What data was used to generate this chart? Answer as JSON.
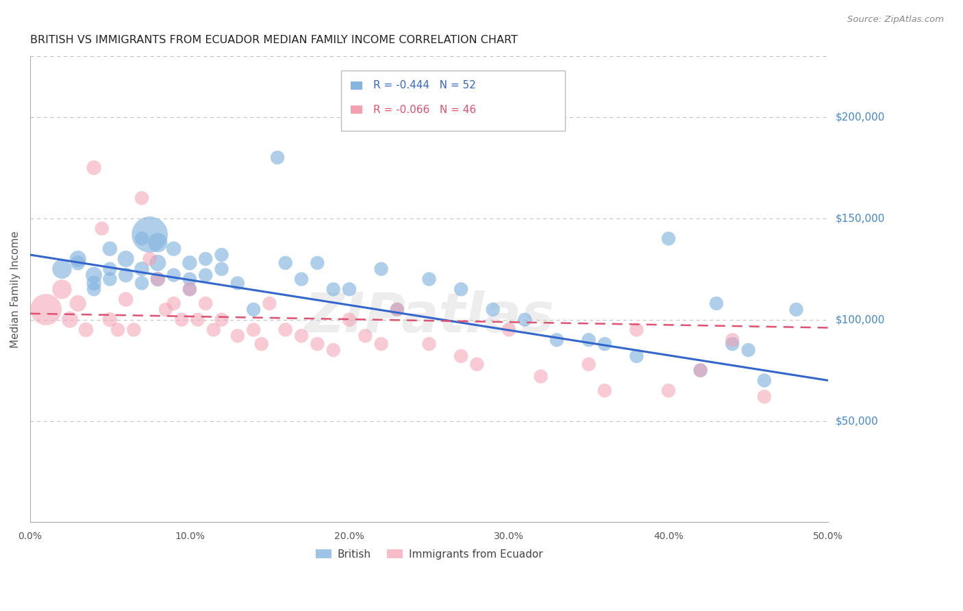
{
  "title": "BRITISH VS IMMIGRANTS FROM ECUADOR MEDIAN FAMILY INCOME CORRELATION CHART",
  "source": "Source: ZipAtlas.com",
  "ylabel": "Median Family Income",
  "watermark": "ZIPatlas",
  "legend_blue_r": "R = -0.444",
  "legend_blue_n": "N = 52",
  "legend_pink_r": "R = -0.066",
  "legend_pink_n": "N = 46",
  "ytick_labels": [
    "$50,000",
    "$100,000",
    "$150,000",
    "$200,000"
  ],
  "ytick_values": [
    50000,
    100000,
    150000,
    200000
  ],
  "ylim": [
    0,
    230000
  ],
  "xlim": [
    0.0,
    0.5
  ],
  "blue_color": "#85B5E0",
  "pink_color": "#F4A0B0",
  "line_blue": "#3366CC",
  "line_pink": "#E05070",
  "grid_color": "#BBBBBB",
  "title_color": "#222222",
  "axis_label_color": "#555555",
  "right_label_color": "#4488CC",
  "blue_x": [
    0.02,
    0.03,
    0.03,
    0.04,
    0.04,
    0.04,
    0.05,
    0.05,
    0.05,
    0.06,
    0.06,
    0.07,
    0.07,
    0.07,
    0.075,
    0.08,
    0.08,
    0.08,
    0.09,
    0.09,
    0.1,
    0.1,
    0.1,
    0.11,
    0.11,
    0.12,
    0.12,
    0.13,
    0.14,
    0.155,
    0.16,
    0.17,
    0.18,
    0.19,
    0.2,
    0.22,
    0.23,
    0.25,
    0.27,
    0.29,
    0.31,
    0.33,
    0.35,
    0.36,
    0.38,
    0.4,
    0.42,
    0.43,
    0.44,
    0.45,
    0.46,
    0.48
  ],
  "blue_y": [
    125000,
    130000,
    128000,
    122000,
    118000,
    115000,
    135000,
    125000,
    120000,
    130000,
    122000,
    140000,
    125000,
    118000,
    142000,
    138000,
    128000,
    120000,
    135000,
    122000,
    128000,
    120000,
    115000,
    130000,
    122000,
    132000,
    125000,
    118000,
    105000,
    180000,
    128000,
    120000,
    128000,
    115000,
    115000,
    125000,
    105000,
    120000,
    115000,
    105000,
    100000,
    90000,
    90000,
    88000,
    82000,
    140000,
    75000,
    108000,
    88000,
    85000,
    70000,
    105000
  ],
  "blue_size": [
    35,
    25,
    20,
    25,
    20,
    18,
    20,
    18,
    18,
    25,
    20,
    18,
    20,
    18,
    120,
    35,
    25,
    20,
    20,
    18,
    20,
    18,
    18,
    18,
    18,
    18,
    18,
    18,
    18,
    18,
    18,
    18,
    18,
    18,
    18,
    18,
    18,
    18,
    18,
    18,
    18,
    18,
    18,
    18,
    18,
    18,
    18,
    18,
    18,
    18,
    18,
    18
  ],
  "pink_x": [
    0.01,
    0.02,
    0.025,
    0.03,
    0.035,
    0.04,
    0.045,
    0.05,
    0.055,
    0.06,
    0.065,
    0.07,
    0.075,
    0.08,
    0.085,
    0.09,
    0.095,
    0.1,
    0.105,
    0.11,
    0.115,
    0.12,
    0.13,
    0.14,
    0.145,
    0.15,
    0.16,
    0.17,
    0.18,
    0.19,
    0.2,
    0.21,
    0.22,
    0.23,
    0.25,
    0.27,
    0.28,
    0.3,
    0.32,
    0.35,
    0.36,
    0.38,
    0.4,
    0.42,
    0.44,
    0.46
  ],
  "pink_y": [
    105000,
    115000,
    100000,
    108000,
    95000,
    175000,
    145000,
    100000,
    95000,
    110000,
    95000,
    160000,
    130000,
    120000,
    105000,
    108000,
    100000,
    115000,
    100000,
    108000,
    95000,
    100000,
    92000,
    95000,
    88000,
    108000,
    95000,
    92000,
    88000,
    85000,
    100000,
    92000,
    88000,
    105000,
    88000,
    82000,
    78000,
    95000,
    72000,
    78000,
    65000,
    95000,
    65000,
    75000,
    90000,
    62000
  ],
  "pink_size": [
    90,
    35,
    25,
    25,
    20,
    20,
    18,
    20,
    18,
    20,
    18,
    18,
    18,
    18,
    18,
    18,
    18,
    18,
    18,
    18,
    18,
    18,
    18,
    18,
    18,
    18,
    18,
    18,
    18,
    18,
    18,
    18,
    18,
    18,
    18,
    18,
    18,
    18,
    18,
    18,
    18,
    18,
    18,
    18,
    18,
    18
  ],
  "blue_trendline_x": [
    0.0,
    0.5
  ],
  "blue_trendline_y": [
    132000,
    70000
  ],
  "pink_trendline_x": [
    0.0,
    0.5
  ],
  "pink_trendline_y": [
    103000,
    96000
  ],
  "xtick_vals": [
    0.0,
    0.1,
    0.2,
    0.3,
    0.4,
    0.5
  ],
  "xtick_labels": [
    "0.0%",
    "10.0%",
    "20.0%",
    "30.0%",
    "40.0%",
    "50.0%"
  ]
}
